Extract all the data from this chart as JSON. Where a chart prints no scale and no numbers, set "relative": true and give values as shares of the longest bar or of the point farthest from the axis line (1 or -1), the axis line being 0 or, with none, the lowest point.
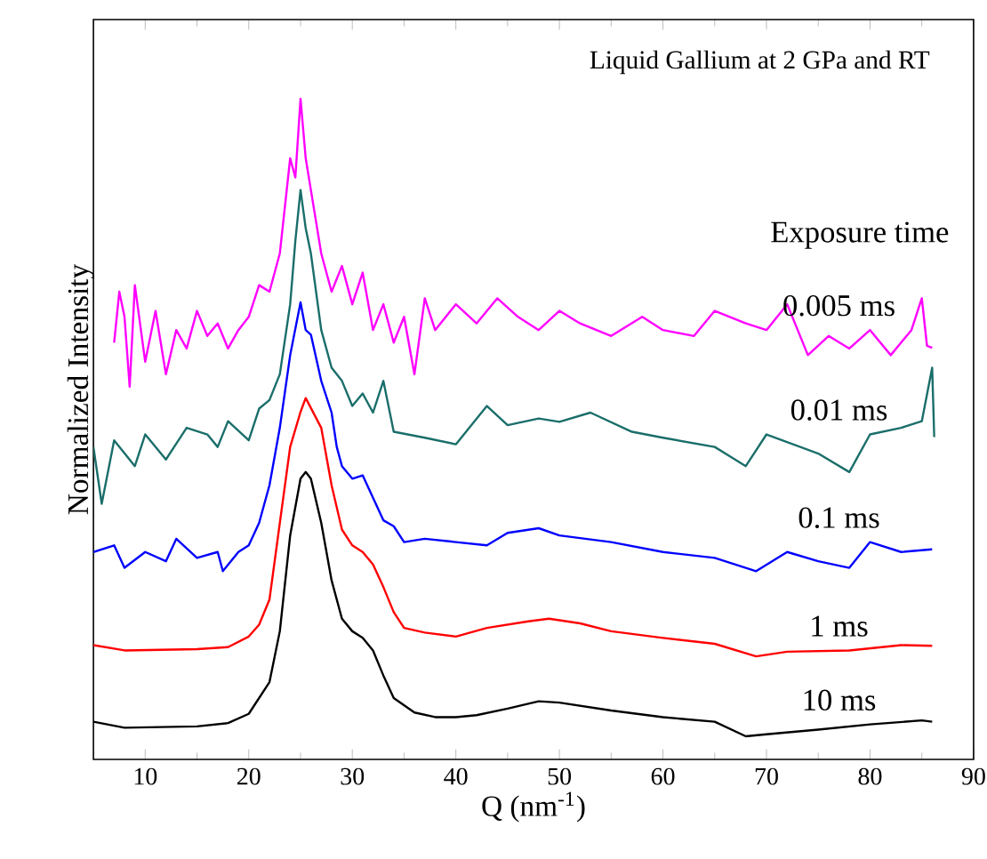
{
  "chart_data": {
    "type": "line",
    "relative": true,
    "xlabel": "Q (nm$^{-1}$)",
    "ylabel": "Normalized Intensity",
    "legend_title": "Exposure time",
    "annotations": [
      "Liquid Gallium at 2 GPa and RT"
    ],
    "xlim": [
      5,
      90
    ],
    "xticks": [
      10,
      20,
      30,
      40,
      50,
      60,
      70,
      80,
      90
    ],
    "series": [
      {
        "name": "0.005 ms",
        "color": "#ff00ff",
        "x": [
          7,
          7.5,
          8,
          8.5,
          9,
          10,
          11,
          12,
          13,
          14,
          15,
          16,
          17,
          18,
          19,
          20,
          21,
          22,
          23,
          24,
          24.5,
          25,
          25.5,
          26,
          27,
          28,
          29,
          30,
          31,
          32,
          33,
          34,
          35,
          36,
          37,
          38,
          40,
          42,
          44,
          46,
          48,
          50,
          52,
          55,
          58,
          60,
          63,
          65,
          68,
          70,
          72,
          74,
          76,
          78,
          80,
          82,
          84,
          85,
          85.5,
          86
        ],
        "values": [
          0.631,
          0.708,
          0.67,
          0.564,
          0.718,
          0.602,
          0.679,
          0.583,
          0.65,
          0.622,
          0.679,
          0.641,
          0.66,
          0.622,
          0.65,
          0.67,
          0.718,
          0.708,
          0.766,
          0.91,
          0.881,
          1,
          0.91,
          0.862,
          0.766,
          0.708,
          0.747,
          0.689,
          0.737,
          0.65,
          0.689,
          0.631,
          0.67,
          0.583,
          0.698,
          0.65,
          0.689,
          0.66,
          0.698,
          0.67,
          0.65,
          0.679,
          0.66,
          0.641,
          0.67,
          0.65,
          0.641,
          0.679,
          0.66,
          0.65,
          0.689,
          0.612,
          0.641,
          0.622,
          0.65,
          0.612,
          0.65,
          0.698,
          0.626,
          0.623
        ]
      },
      {
        "name": "0.01 ms",
        "color": "#1a6e6a",
        "x": [
          5,
          5.8,
          7,
          9,
          10,
          12,
          14,
          16,
          17,
          18,
          20,
          21,
          22,
          23,
          24,
          24.5,
          25,
          25.5,
          26,
          27,
          28,
          29,
          30,
          31,
          32,
          33,
          34,
          37,
          40,
          43,
          45,
          48,
          50,
          53,
          57,
          60,
          65,
          68,
          70,
          75,
          78,
          80,
          83,
          85,
          86,
          86.2
        ],
        "values": [
          0.473,
          0.387,
          0.483,
          0.444,
          0.492,
          0.454,
          0.502,
          0.492,
          0.473,
          0.512,
          0.483,
          0.531,
          0.544,
          0.583,
          0.689,
          0.785,
          0.862,
          0.804,
          0.766,
          0.65,
          0.593,
          0.573,
          0.535,
          0.554,
          0.525,
          0.573,
          0.496,
          0.487,
          0.477,
          0.535,
          0.506,
          0.516,
          0.511,
          0.525,
          0.496,
          0.487,
          0.473,
          0.444,
          0.492,
          0.463,
          0.435,
          0.492,
          0.502,
          0.512,
          0.593,
          0.488
        ]
      },
      {
        "name": "0.1 ms",
        "color": "#0000ff",
        "x": [
          5,
          7,
          8,
          10,
          12,
          13,
          15,
          17,
          17.5,
          19,
          20,
          21,
          22,
          23,
          24,
          25,
          25.5,
          26,
          27,
          28,
          28.5,
          29,
          30,
          31,
          32,
          33,
          34,
          35,
          37,
          40,
          43,
          45,
          48,
          50,
          55,
          60,
          65,
          69,
          72,
          75,
          78,
          80,
          83,
          86
        ],
        "values": [
          0.314,
          0.324,
          0.29,
          0.314,
          0.3,
          0.334,
          0.305,
          0.314,
          0.285,
          0.314,
          0.324,
          0.358,
          0.415,
          0.502,
          0.612,
          0.692,
          0.65,
          0.643,
          0.573,
          0.525,
          0.473,
          0.444,
          0.425,
          0.43,
          0.396,
          0.362,
          0.353,
          0.329,
          0.334,
          0.329,
          0.324,
          0.343,
          0.35,
          0.339,
          0.329,
          0.314,
          0.305,
          0.285,
          0.314,
          0.3,
          0.29,
          0.329,
          0.314,
          0.318
        ]
      },
      {
        "name": "1 ms",
        "color": "#ff0000",
        "x": [
          5,
          8,
          15,
          18,
          20,
          21,
          22,
          23,
          24,
          25,
          25.5,
          27,
          28,
          29,
          30,
          31,
          32,
          33,
          34,
          35,
          37,
          40,
          43,
          47,
          49,
          52,
          55,
          60,
          65,
          69,
          72,
          78,
          83,
          86
        ],
        "values": [
          0.173,
          0.165,
          0.167,
          0.17,
          0.186,
          0.204,
          0.242,
          0.358,
          0.473,
          0.526,
          0.547,
          0.502,
          0.415,
          0.348,
          0.324,
          0.314,
          0.295,
          0.261,
          0.223,
          0.199,
          0.192,
          0.186,
          0.199,
          0.209,
          0.213,
          0.206,
          0.194,
          0.184,
          0.175,
          0.156,
          0.163,
          0.165,
          0.173,
          0.172
        ]
      },
      {
        "name": "10 ms",
        "color": "#000000",
        "x": [
          5,
          8,
          15,
          18,
          20,
          22,
          23,
          24,
          25,
          25.5,
          26,
          27,
          28,
          29,
          30,
          31,
          32,
          33,
          34,
          36,
          38,
          40,
          42,
          45,
          48,
          50,
          55,
          60,
          65,
          68,
          70,
          75,
          80,
          85,
          86
        ],
        "values": [
          0.057,
          0.048,
          0.05,
          0.055,
          0.069,
          0.117,
          0.194,
          0.339,
          0.425,
          0.435,
          0.425,
          0.358,
          0.271,
          0.213,
          0.194,
          0.184,
          0.165,
          0.127,
          0.093,
          0.071,
          0.064,
          0.064,
          0.067,
          0.077,
          0.088,
          0.086,
          0.074,
          0.064,
          0.057,
          0.035,
          0.038,
          0.045,
          0.053,
          0.059,
          0.057
        ]
      }
    ]
  }
}
